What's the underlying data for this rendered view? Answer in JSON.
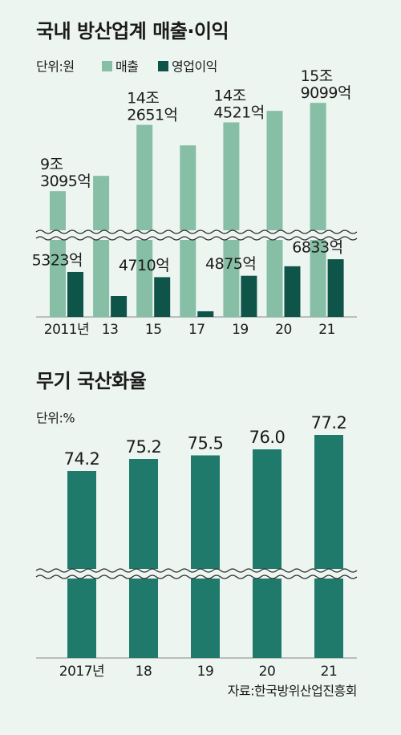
{
  "chart_data": [
    {
      "type": "bar",
      "title": "국내 방산업계 매출·이익",
      "unit": "단위:원",
      "categories": [
        "2011년",
        "13",
        "15",
        "17",
        "19",
        "20",
        "21"
      ],
      "series": [
        {
          "name": "매출",
          "color": "#86bea6",
          "values": [
            93095,
            104500,
            142651,
            127300,
            144521,
            153100,
            159099
          ],
          "value_labels": [
            "9조 3095억",
            null,
            "14조 2651억",
            null,
            "14조 4521억",
            null,
            "15조 9099억"
          ]
        },
        {
          "name": "영업이익",
          "color": "#0f5449",
          "values": [
            5323,
            2470,
            4710,
            670,
            4875,
            6000,
            6833
          ],
          "value_labels": [
            "5323억",
            null,
            "4710억",
            null,
            "4875억",
            null,
            "6833억"
          ]
        }
      ],
      "ylim": [
        0,
        170000
      ],
      "ybreak": [
        9500,
        65000
      ]
    },
    {
      "type": "bar",
      "title": "무기 국산화율",
      "unit": "단위:%",
      "categories": [
        "2017년",
        "18",
        "19",
        "20",
        "21"
      ],
      "values": [
        74.2,
        75.2,
        75.5,
        76.0,
        77.2
      ],
      "value_labels": [
        "74.2",
        "75.2",
        "75.5",
        "76.0",
        "77.2"
      ],
      "color": "#1f7a6c",
      "ylim": [
        0,
        78
      ],
      "ybreak": [
        60,
        66
      ]
    }
  ],
  "source": "자료:한국방위산업진흥회"
}
